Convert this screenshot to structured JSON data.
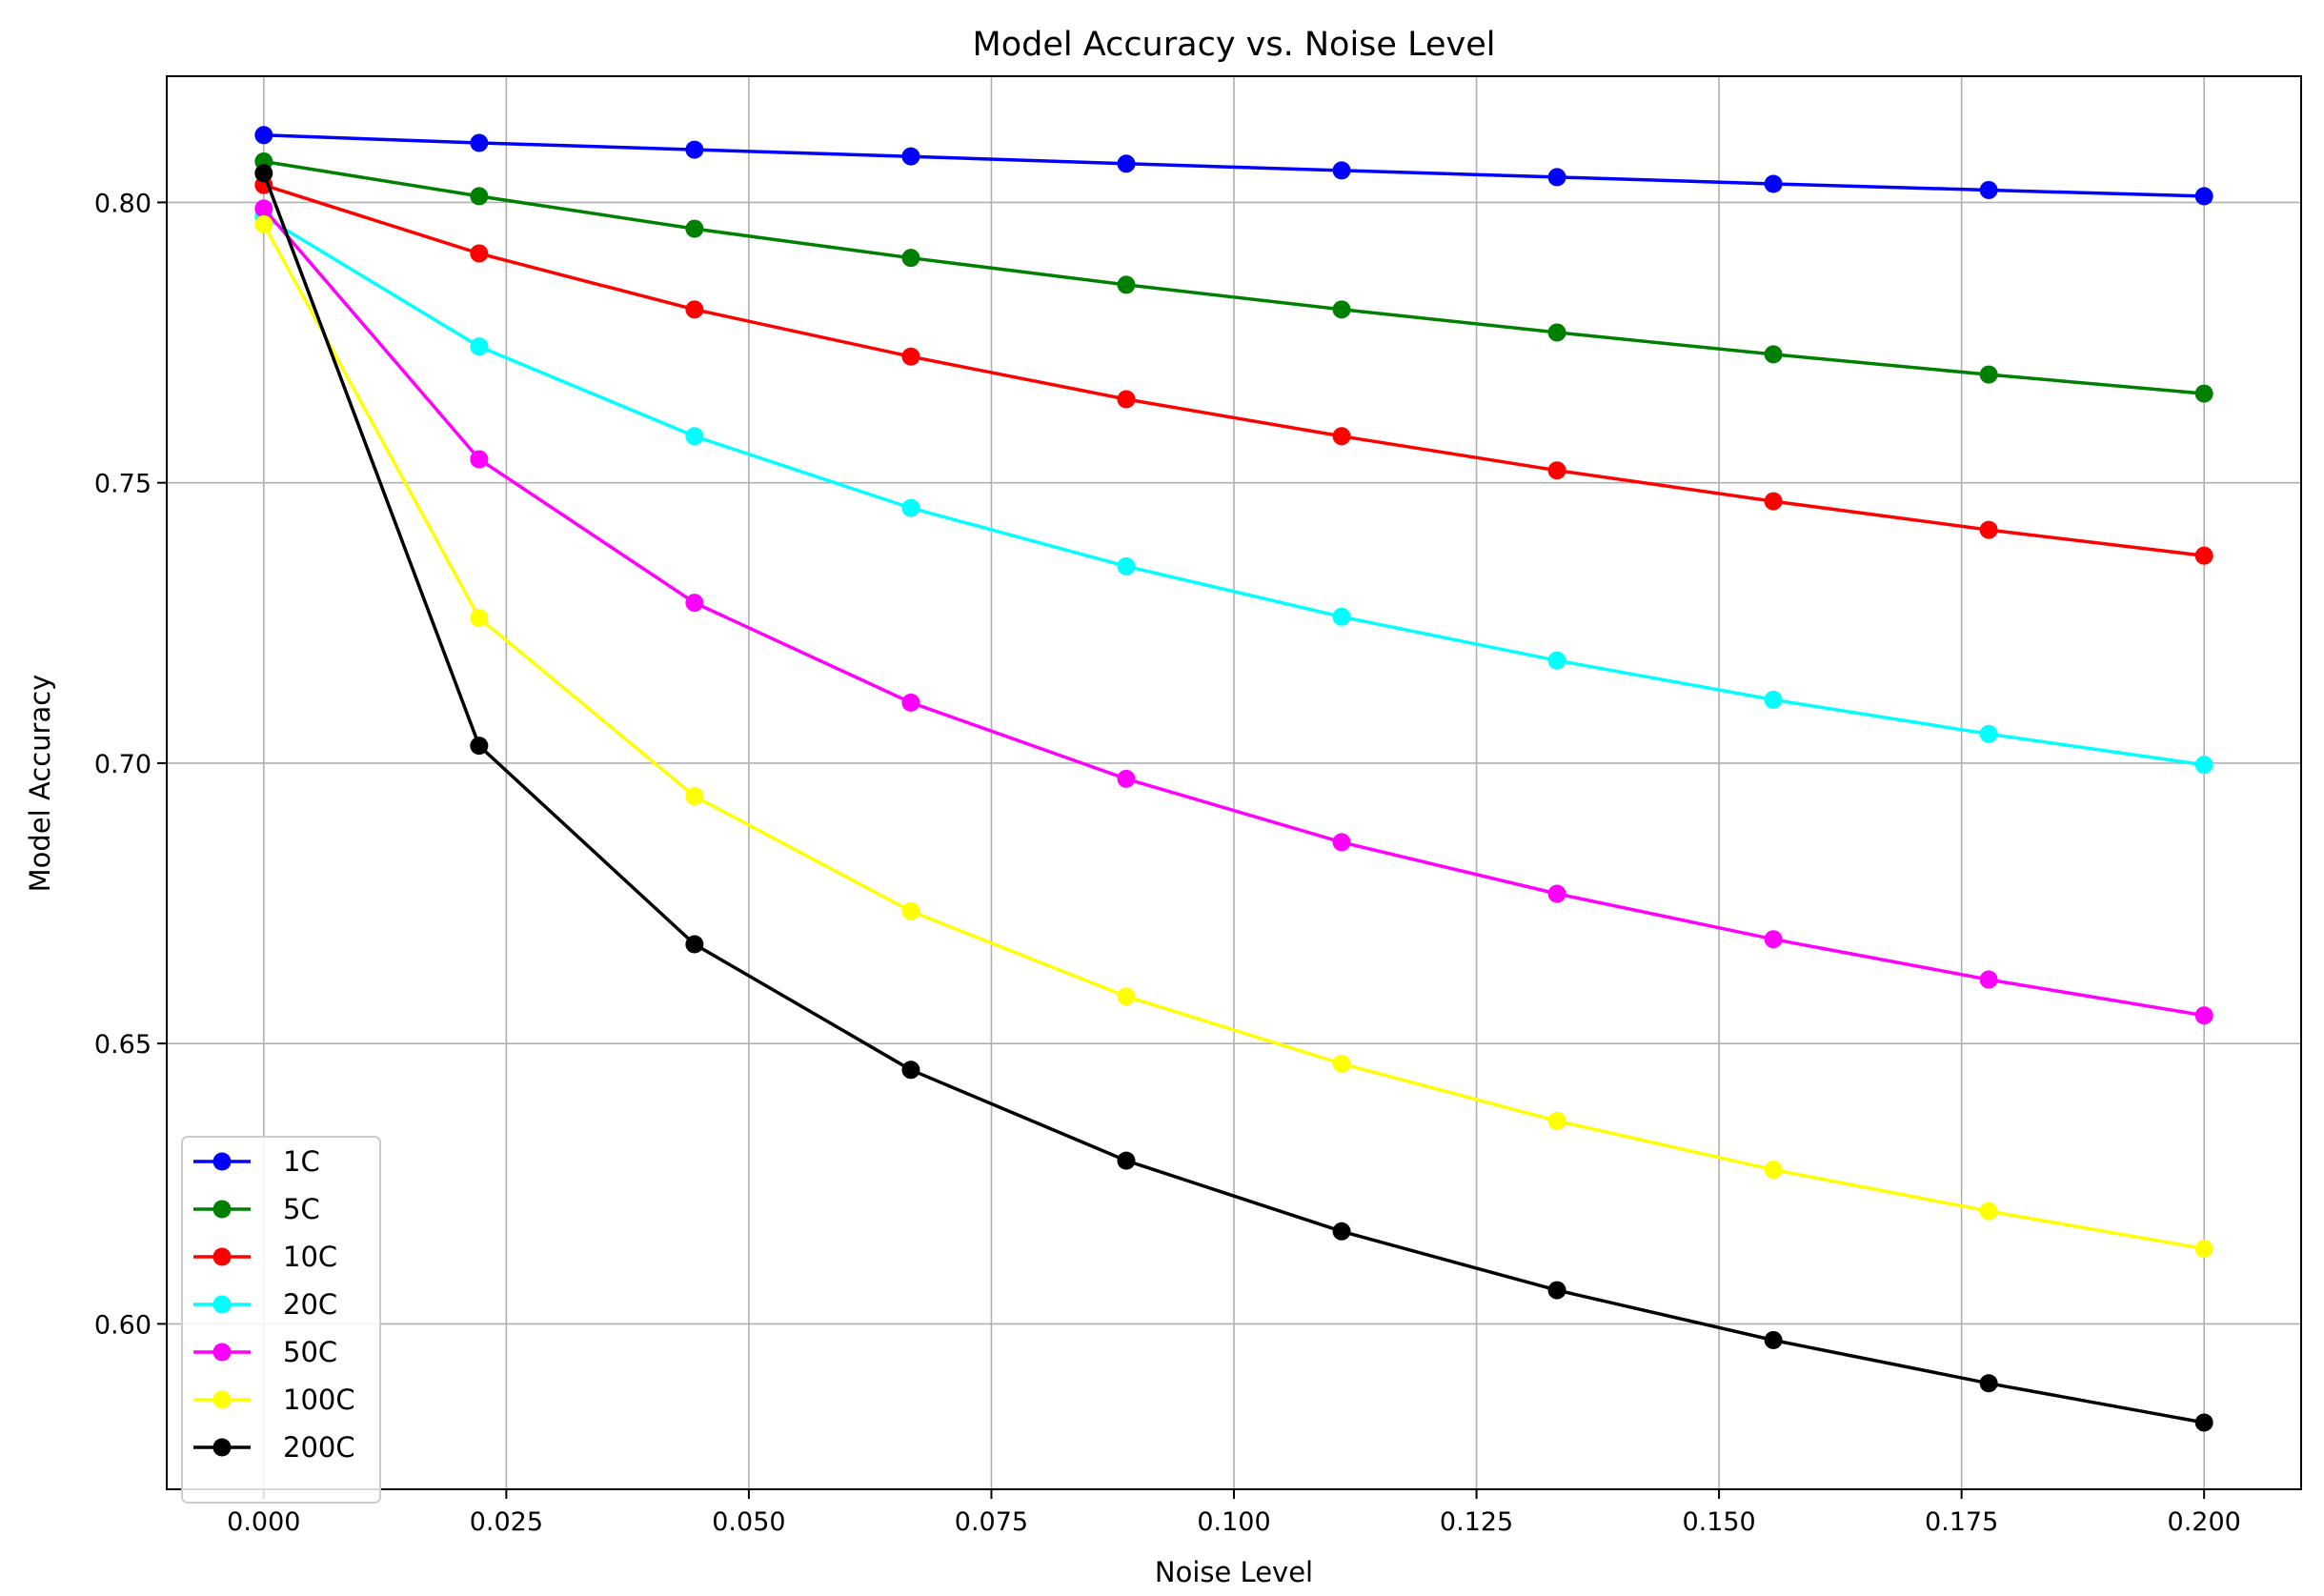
{
  "chart_data": {
    "type": "line",
    "title": "Model Accuracy vs. Noise Level",
    "xlabel": "Noise Level",
    "ylabel": "Model Accuracy",
    "xlim": [
      -0.01,
      0.21
    ],
    "ylim": [
      0.5705,
      0.8225
    ],
    "xticks": [
      0.0,
      0.025,
      0.05,
      0.075,
      0.1,
      0.125,
      0.15,
      0.175,
      0.2
    ],
    "xtick_labels": [
      "0.000",
      "0.025",
      "0.050",
      "0.075",
      "0.100",
      "0.125",
      "0.150",
      "0.175",
      "0.200"
    ],
    "yticks": [
      0.6,
      0.65,
      0.7,
      0.75,
      0.8
    ],
    "ytick_labels": [
      "0.60",
      "0.65",
      "0.70",
      "0.75",
      "0.80"
    ],
    "grid": true,
    "legend_position": "lower-left",
    "x": [
      0.0,
      0.0222,
      0.0444,
      0.0667,
      0.0889,
      0.1111,
      0.1333,
      0.1556,
      0.1778,
      0.2
    ],
    "series": [
      {
        "name": "1C",
        "color": "#0000ff",
        "values": [
          0.812,
          0.8106,
          0.8094,
          0.8082,
          0.8069,
          0.8057,
          0.8045,
          0.8033,
          0.8022,
          0.8011
        ]
      },
      {
        "name": "5C",
        "color": "#008000",
        "values": [
          0.8073,
          0.8011,
          0.7953,
          0.7901,
          0.7853,
          0.7809,
          0.7768,
          0.7729,
          0.7693,
          0.7659
        ]
      },
      {
        "name": "10C",
        "color": "#ff0000",
        "values": [
          0.8031,
          0.7909,
          0.7809,
          0.7725,
          0.7649,
          0.7583,
          0.7522,
          0.7467,
          0.7416,
          0.737
        ]
      },
      {
        "name": "20C",
        "color": "#00ffff",
        "values": [
          0.7975,
          0.7743,
          0.7583,
          0.7455,
          0.7351,
          0.7261,
          0.7183,
          0.7113,
          0.7052,
          0.6997
        ]
      },
      {
        "name": "50C",
        "color": "#ff00ff",
        "values": [
          0.7989,
          0.7542,
          0.7286,
          0.7108,
          0.6972,
          0.6859,
          0.6767,
          0.6686,
          0.6614,
          0.655
        ]
      },
      {
        "name": "100C",
        "color": "#ffff00",
        "values": [
          0.7961,
          0.7259,
          0.6941,
          0.6736,
          0.6584,
          0.6464,
          0.6362,
          0.6275,
          0.6201,
          0.6134
        ]
      },
      {
        "name": "200C",
        "color": "#000000",
        "values": [
          0.8052,
          0.7031,
          0.6677,
          0.6453,
          0.6291,
          0.6165,
          0.606,
          0.5971,
          0.5894,
          0.5824
        ]
      }
    ]
  }
}
